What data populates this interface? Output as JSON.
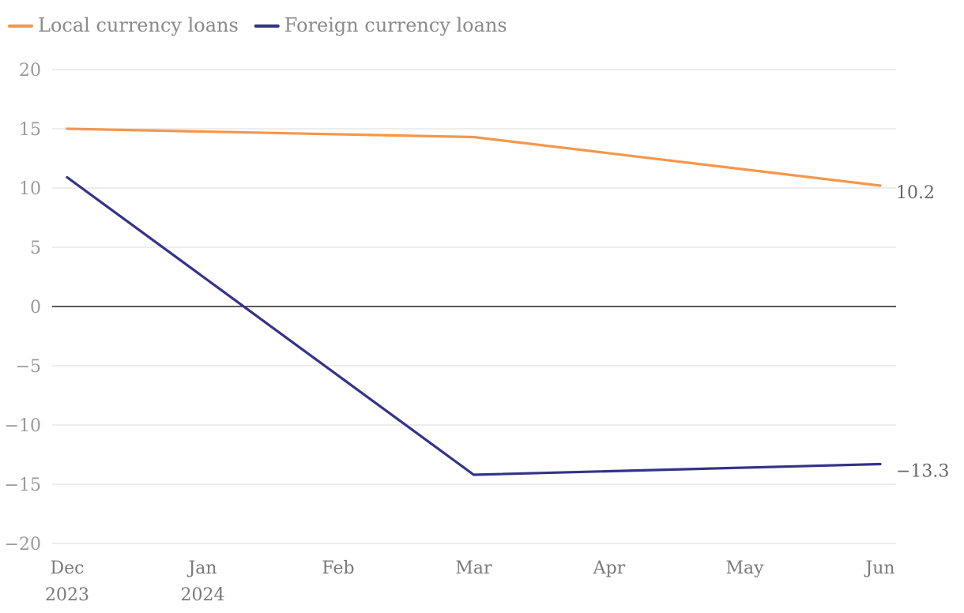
{
  "chart_data": {
    "type": "line",
    "x": [
      "2023-12",
      "2024-01",
      "2024-02",
      "2024-03",
      "2024-04",
      "2024-05",
      "2024-06"
    ],
    "x_tick_labels": [
      [
        "Dec",
        "2023"
      ],
      [
        "Jan",
        "2024"
      ],
      [
        "Feb"
      ],
      [
        "Mar"
      ],
      [
        "Apr"
      ],
      [
        "May"
      ],
      [
        "Jun"
      ]
    ],
    "series": [
      {
        "name": "Local currency loans",
        "color": "#f5974b",
        "points": [
          [
            "2023-12",
            15.0
          ],
          [
            "2024-03",
            14.3
          ],
          [
            "2024-06",
            10.2
          ]
        ],
        "end_label": "10.2"
      },
      {
        "name": "Foreign currency loans",
        "color": "#33338c",
        "points": [
          [
            "2023-12",
            10.9
          ],
          [
            "2024-03",
            -14.2
          ],
          [
            "2024-06",
            -13.3
          ]
        ],
        "end_label": "−13.3"
      }
    ],
    "y_ticks": [
      20,
      15,
      10,
      5,
      0,
      -5,
      -10,
      -15,
      -20
    ],
    "y_tick_labels": [
      "20",
      "15",
      "10",
      "5",
      "0",
      "−5",
      "−10",
      "−15",
      "−20"
    ],
    "ylim": [
      -20,
      20
    ],
    "grid": true,
    "legend": "top-left"
  }
}
